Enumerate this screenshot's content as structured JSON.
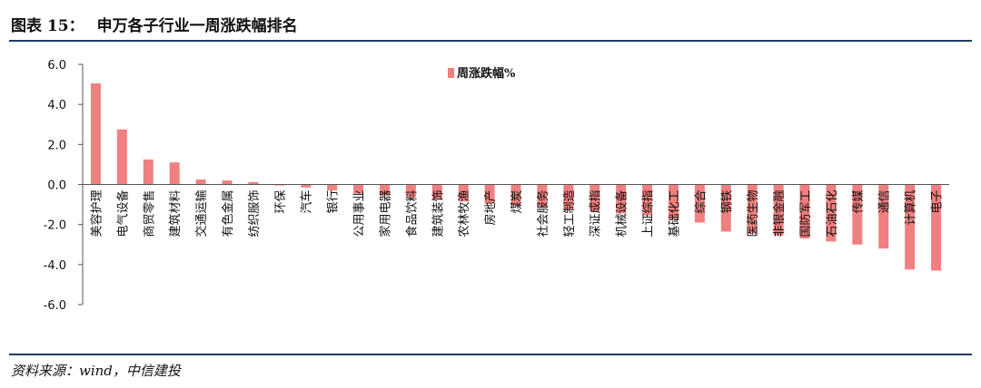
{
  "figure": {
    "label": "图表 15：",
    "title": "申万各子行业一周涨跌幅排名",
    "source": "资料来源：wind，中信建投"
  },
  "chart_data": {
    "type": "bar",
    "title": "",
    "xlabel": "",
    "ylabel": "",
    "ylim": [
      -6.0,
      6.0
    ],
    "yticks": [
      "6.0",
      "4.0",
      "2.0",
      "0.0",
      "-2.0",
      "-4.0",
      "-6.0"
    ],
    "grid": false,
    "legend_position": "top-center",
    "bar_color": "#f08080",
    "categories": [
      "美容护理",
      "电气设备",
      "商贸零售",
      "建筑材料",
      "交通运输",
      "有色金属",
      "纺织服饰",
      "环保",
      "汽车",
      "银行",
      "公用事业",
      "家用电器",
      "食品饮料",
      "建筑装饰",
      "农林牧渔",
      "房地产",
      "煤炭",
      "社会服务",
      "轻工制造",
      "深证成指",
      "机械设备",
      "上证综指",
      "基础化工",
      "综合",
      "钢铁",
      "医药生物",
      "非银金融",
      "国防军工",
      "石油石化",
      "传媒",
      "通信",
      "计算机",
      "电子"
    ],
    "series": [
      {
        "name": "周涨跌幅%",
        "values": [
          5.05,
          2.75,
          1.25,
          1.1,
          0.25,
          0.2,
          0.12,
          -0.05,
          -0.15,
          -0.3,
          -0.45,
          -0.55,
          -0.65,
          -0.75,
          -0.85,
          -0.95,
          -1.05,
          -1.15,
          -1.25,
          -1.35,
          -1.45,
          -1.55,
          -1.75,
          -1.9,
          -2.35,
          -2.45,
          -2.55,
          -2.7,
          -2.85,
          -3.0,
          -3.2,
          -4.25,
          -4.3
        ]
      }
    ]
  }
}
